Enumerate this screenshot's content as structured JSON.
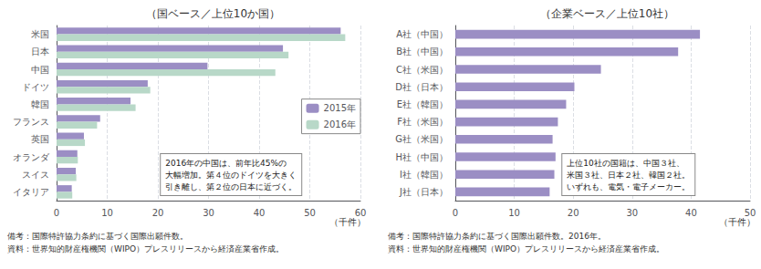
{
  "chart_data": [
    {
      "type": "bar",
      "orientation": "horizontal",
      "title": "（国ベース／上位10か国）",
      "categories": [
        "米国",
        "日本",
        "中国",
        "ドイツ",
        "韓国",
        "フランス",
        "英国",
        "オランダ",
        "スイス",
        "イタリア"
      ],
      "series": [
        {
          "name": "2015年",
          "color": "#9b8ec4",
          "values": [
            56.1,
            44.7,
            29.8,
            18.0,
            14.6,
            8.6,
            5.4,
            4.1,
            3.8,
            3.0
          ]
        },
        {
          "name": "2016年",
          "color": "#b8d8c8",
          "values": [
            57.0,
            45.8,
            43.2,
            18.5,
            15.6,
            8.0,
            5.6,
            4.2,
            3.9,
            3.1
          ]
        }
      ],
      "xlim": [
        0,
        60
      ],
      "xticks": [
        0,
        10,
        20,
        30,
        40,
        50,
        60
      ],
      "xlabel": "（千件）",
      "grid": true,
      "legend": "right",
      "annotation": "2016年の中国は、前年比45%の\n大幅増加。第４位のドイツを大きく\n引き離し、第２位の日本に近づく。",
      "notes": [
        "備考：国際特許協力条約に基づく国際出願件数。",
        "資料：世界知的財産権機関（WIPO）プレスリリースから経済産業省作成。"
      ]
    },
    {
      "type": "bar",
      "orientation": "horizontal",
      "title": "（企業ベース／上位10社）",
      "categories": [
        "A社（中国）",
        "B社（中国）",
        "C社（米国）",
        "D社（日本）",
        "E社（韓国）",
        "F社（米国）",
        "G社（米国）",
        "H社（中国）",
        "I社（韓国）",
        "J社（日本）"
      ],
      "values": [
        41.5,
        37.8,
        24.7,
        20.2,
        18.8,
        17.4,
        16.5,
        17.0,
        16.8,
        16.0
      ],
      "color": "#9b8ec4",
      "xlim": [
        0,
        50
      ],
      "xticks": [
        0,
        10,
        20,
        30,
        40,
        50
      ],
      "xlabel": "（千件）",
      "grid": true,
      "annotation": "上位10社の国籍は、中国３社、\n米国３社、日本２社、韓国２社。\nいずれも、電気・電子メーカー。",
      "notes": [
        "備考：国際特許協力条約に基づく国際出願件数。2016年。",
        "資料：世界知的財産権機関（WIPO）プレスリリースから経済産業省作成。"
      ]
    }
  ]
}
